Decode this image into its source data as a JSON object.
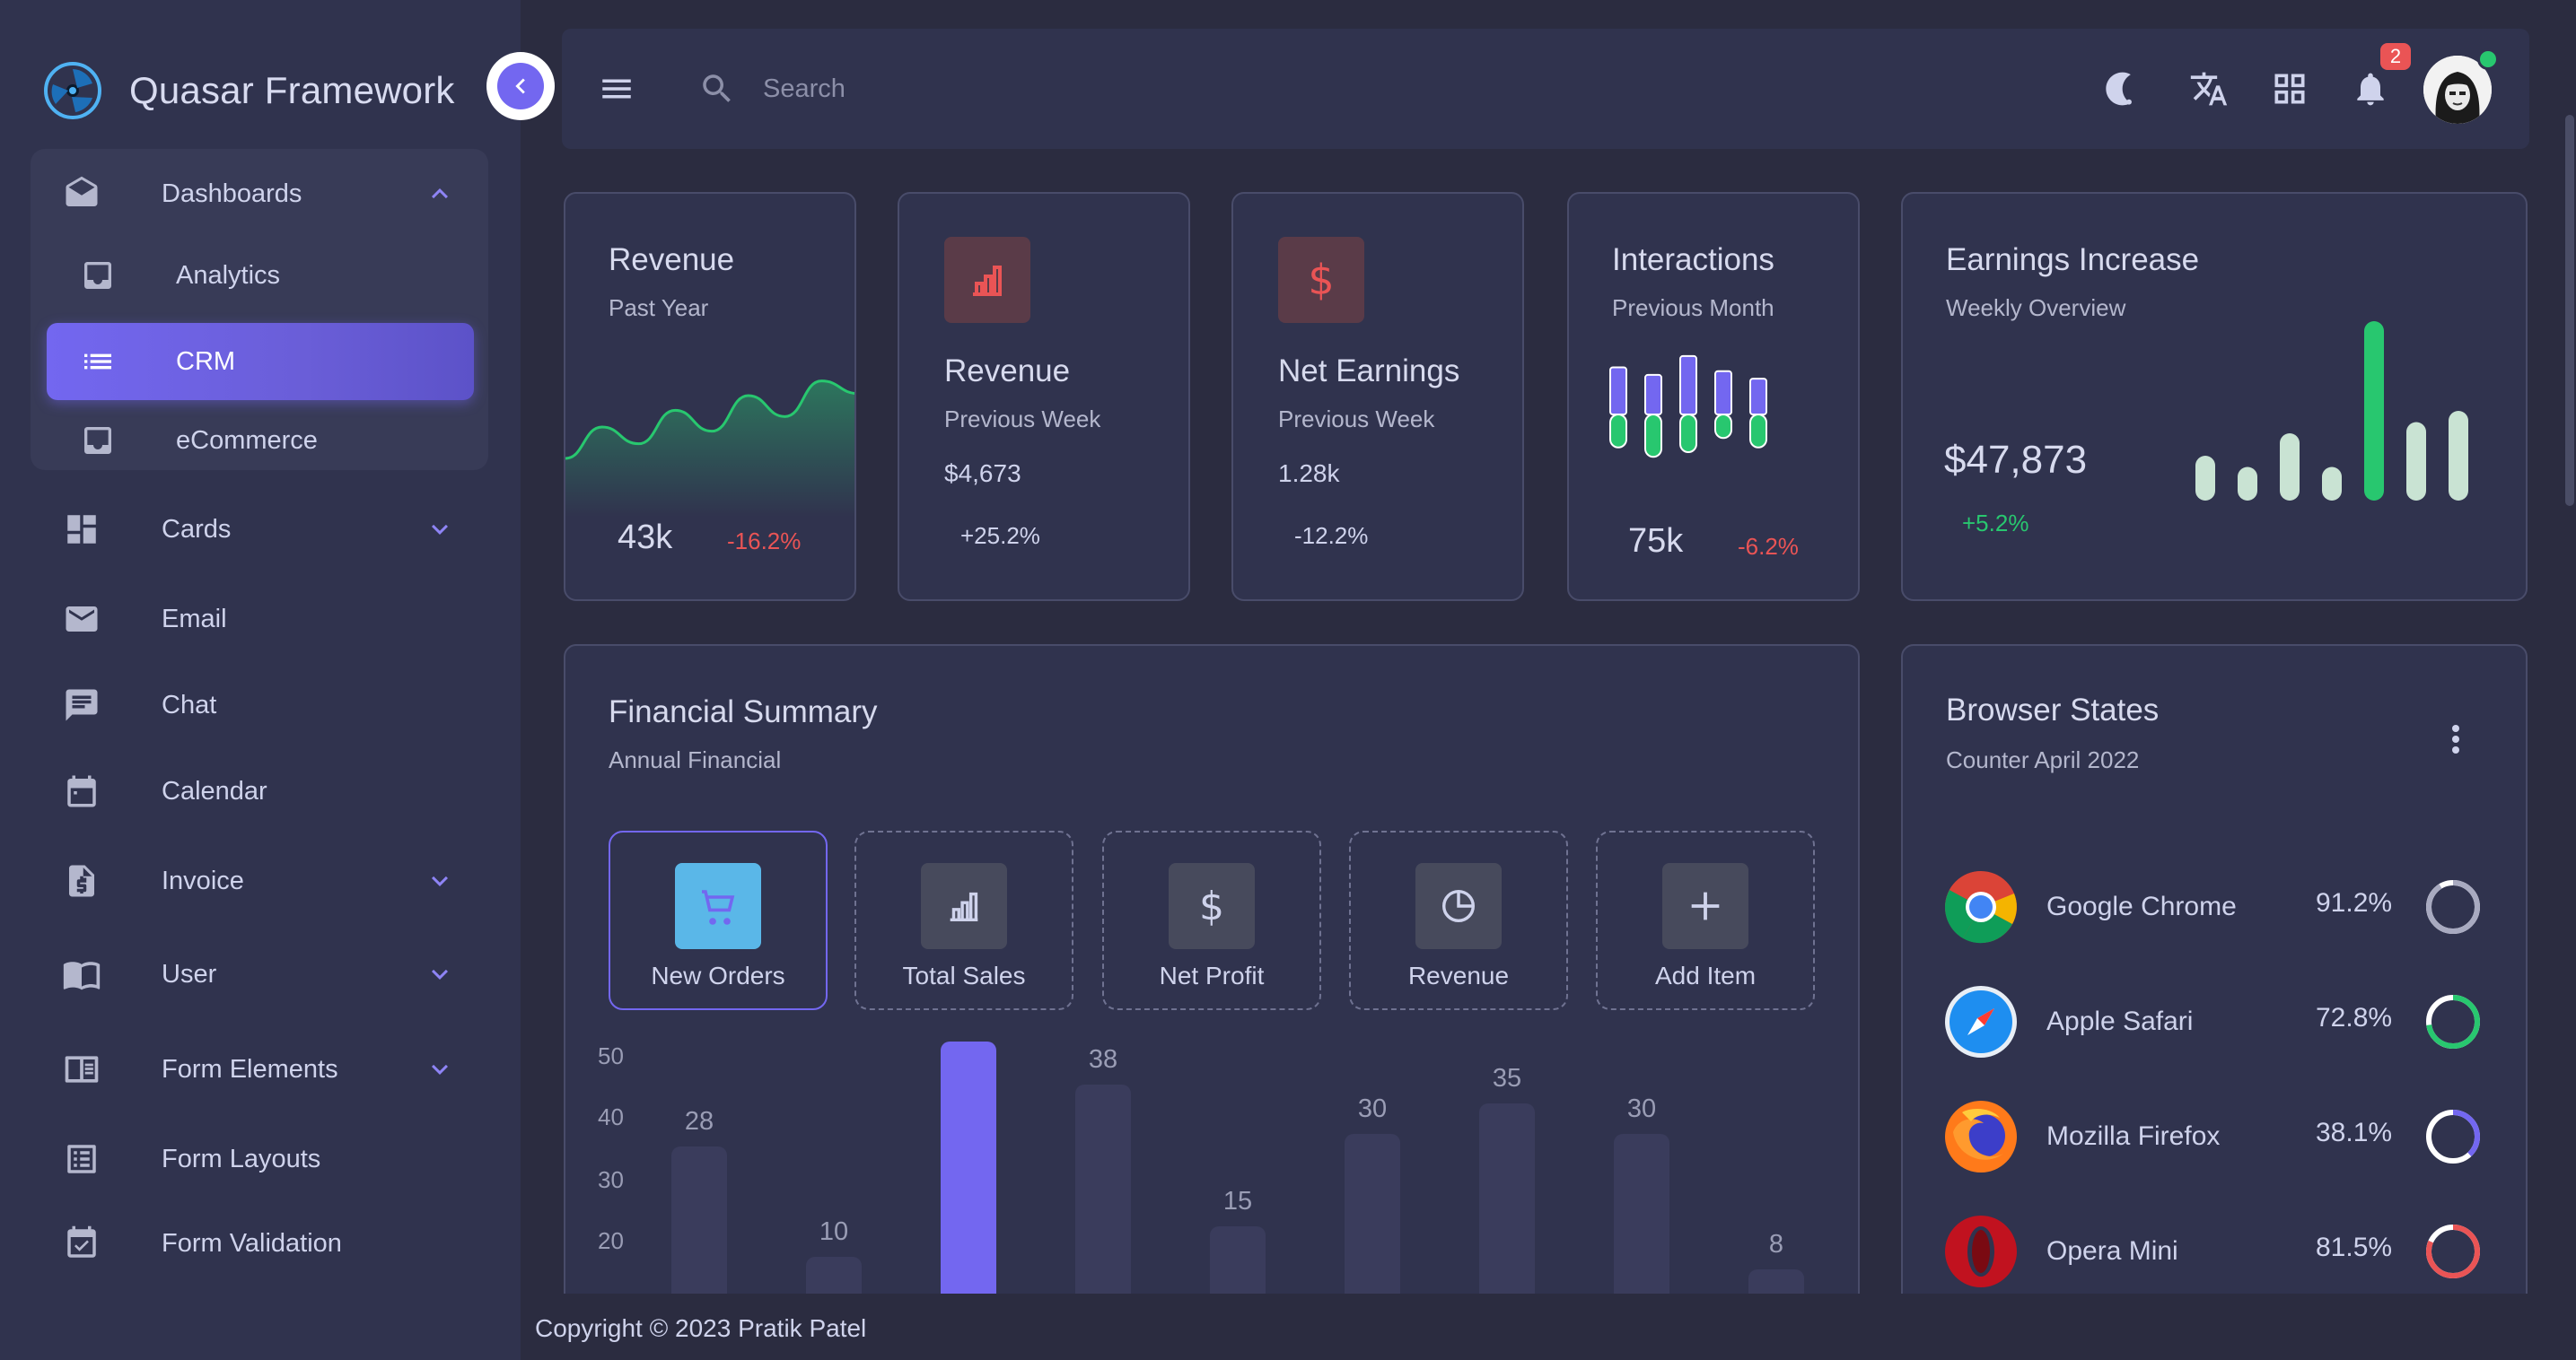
{
  "brand": {
    "title": "Quasar Framework"
  },
  "sidebar": {
    "items": [
      {
        "label": "Dashboards",
        "icon": "mail-open-icon"
      },
      {
        "label": "Analytics",
        "icon": "inbox-icon"
      },
      {
        "label": "CRM",
        "icon": "list-icon",
        "active": true
      },
      {
        "label": "eCommerce",
        "icon": "inbox-icon"
      },
      {
        "label": "Cards",
        "icon": "dashboard-icon"
      },
      {
        "label": "Email",
        "icon": "email-icon"
      },
      {
        "label": "Chat",
        "icon": "chat-icon"
      },
      {
        "label": "Calendar",
        "icon": "calendar-icon"
      },
      {
        "label": "Invoice",
        "icon": "invoice-icon"
      },
      {
        "label": "User",
        "icon": "book-open-icon"
      },
      {
        "label": "Form Elements",
        "icon": "book-icon"
      },
      {
        "label": "Form Layouts",
        "icon": "list-alt-icon"
      },
      {
        "label": "Form Validation",
        "icon": "event-available-icon"
      }
    ]
  },
  "header": {
    "search_placeholder": "Search",
    "notification_count": "2",
    "icons": [
      "menu-icon",
      "search-icon",
      "dark-mode-icon",
      "translate-icon",
      "apps-icon",
      "bell-icon"
    ]
  },
  "cards": {
    "revenue_year": {
      "title": "Revenue",
      "subtitle": "Past Year",
      "value": "43k",
      "change": "-16.2%"
    },
    "revenue_week": {
      "title": "Revenue",
      "subtitle": "Previous Week",
      "value": "$4,673",
      "change": "+25.2%"
    },
    "net_earnings": {
      "title": "Net Earnings",
      "subtitle": "Previous Week",
      "value": "1.28k",
      "change": "-12.2%"
    },
    "interactions": {
      "title": "Interactions",
      "subtitle": "Previous Month",
      "value": "75k",
      "change": "-6.2%"
    },
    "earnings_increase": {
      "title": "Earnings Increase",
      "subtitle": "Weekly Overview",
      "value": "$47,873",
      "change": "+5.2%"
    }
  },
  "financial": {
    "title": "Financial Summary",
    "subtitle": "Annual Financial",
    "tabs": [
      {
        "label": "New Orders",
        "icon": "cart-icon",
        "selected": true
      },
      {
        "label": "Total Sales",
        "icon": "bar-chart-icon"
      },
      {
        "label": "Net Profit",
        "icon": "dollar-icon"
      },
      {
        "label": "Revenue",
        "icon": "pie-icon"
      },
      {
        "label": "Add Item",
        "icon": "plus-icon"
      }
    ]
  },
  "browser": {
    "title": "Browser States",
    "subtitle": "Counter April 2022",
    "rows": [
      {
        "name": "Google Chrome",
        "value": "91.2%",
        "pct": 91.2,
        "color": "#a8aac0"
      },
      {
        "name": "Apple Safari",
        "value": "72.8%",
        "pct": 72.8,
        "color": "#28c76f"
      },
      {
        "name": "Mozilla Firefox",
        "value": "38.1%",
        "pct": 38.1,
        "color": "#7367f0"
      },
      {
        "name": "Opera Mini",
        "value": "81.5%",
        "pct": 81.5,
        "color": "#ea5455"
      }
    ]
  },
  "footer": {
    "text": "Copyright © 2023 Pratik Patel"
  },
  "chart_data": [
    {
      "type": "bar",
      "series": [
        {
          "values": [
            28,
            10,
            45,
            38,
            15,
            30,
            35,
            30,
            8
          ]
        }
      ],
      "yticks": [
        "50",
        "40",
        "30",
        "20"
      ],
      "ylim": [
        0,
        50
      ],
      "highlight_index": 2,
      "colors": {
        "bar": "#3a3c5c",
        "highlight": "#7367f0"
      }
    },
    {
      "type": "bar",
      "values": [
        20,
        15,
        30,
        15,
        80,
        35,
        40
      ],
      "colors": {
        "bar": "#c9e3d3",
        "highlight": "#28c76f"
      },
      "highlight_index": 4
    },
    {
      "type": "line",
      "values": [
        15,
        30,
        22,
        38,
        28,
        45,
        35,
        52,
        46
      ],
      "colors": {
        "line": "#28c76f"
      }
    },
    {
      "type": "bar",
      "series": [
        {
          "values": [
            50,
            42,
            62,
            46,
            38
          ]
        },
        {
          "values": [
            35,
            45,
            40,
            25,
            35
          ]
        }
      ],
      "colors": {
        "top": "#7367f0",
        "bottom": "#28c76f"
      }
    }
  ]
}
